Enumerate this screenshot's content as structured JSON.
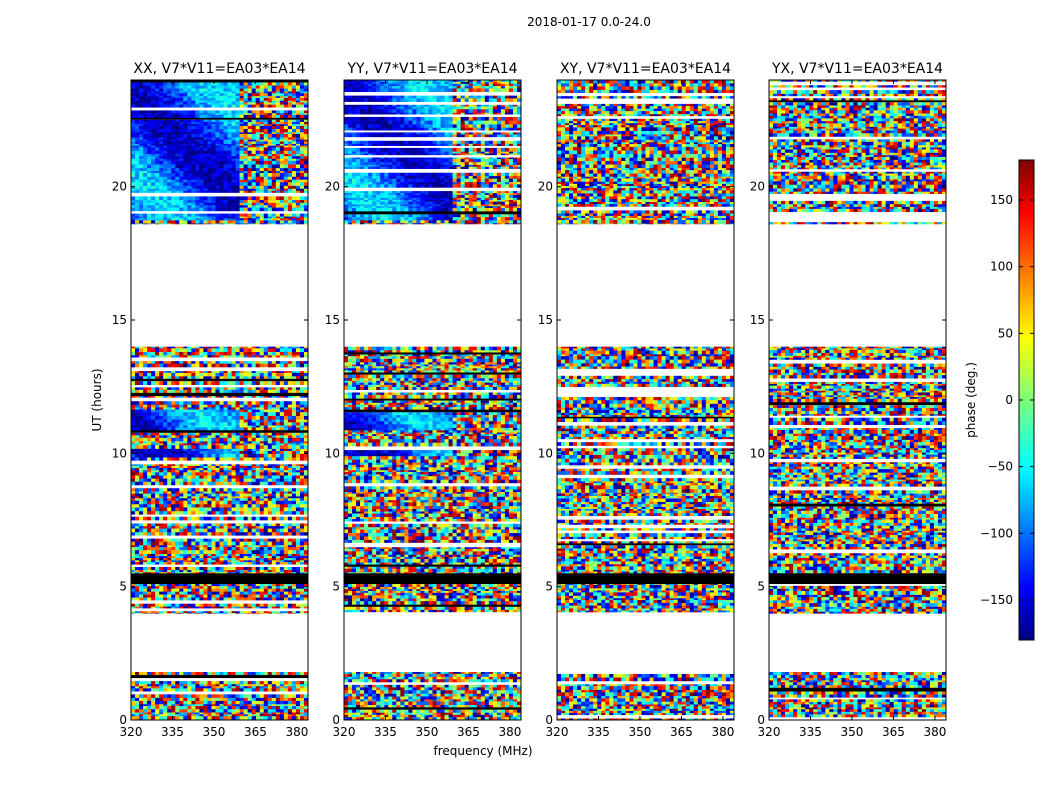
{
  "chart_data": {
    "type": "heatmap",
    "suptitle": "2018-01-17 0.0-24.0",
    "xlabel": "frequency (MHz)",
    "ylabel": "UT (hours)",
    "xlim": [
      320,
      384
    ],
    "ylim": [
      0,
      24
    ],
    "xticks": [
      "320",
      "335",
      "350",
      "365",
      "380"
    ],
    "xtick_values": [
      320,
      335,
      350,
      365,
      380
    ],
    "yticks": [
      "0",
      "5",
      "10",
      "15",
      "20"
    ],
    "ytick_values": [
      0,
      5,
      10,
      15,
      20
    ],
    "panels": [
      {
        "title": "XX, V7*V11=EA03*EA14",
        "pol": "XX"
      },
      {
        "title": "YY, V7*V11=EA03*EA14",
        "pol": "YY"
      },
      {
        "title": "XY, V7*V11=EA03*EA14",
        "pol": "XY"
      },
      {
        "title": "YX, V7*V11=EA03*EA14",
        "pol": "YX"
      }
    ],
    "data_blocks_ut_hours": [
      [
        0.0,
        1.8
      ],
      [
        4.0,
        8.5
      ],
      [
        8.5,
        14.0
      ],
      [
        18.6,
        24.0
      ]
    ],
    "blank_gaps_ut_hours": [
      [
        1.8,
        4.0
      ],
      [
        14.0,
        18.6
      ]
    ],
    "colorbar": {
      "label": "phase (deg.)",
      "range": [
        -180,
        180
      ],
      "ticks": [
        "150",
        "100",
        "50",
        "0",
        "−50",
        "−100",
        "−150"
      ],
      "tick_values": [
        150,
        100,
        50,
        0,
        -50,
        -100,
        -150
      ],
      "colormap": "jet"
    }
  }
}
